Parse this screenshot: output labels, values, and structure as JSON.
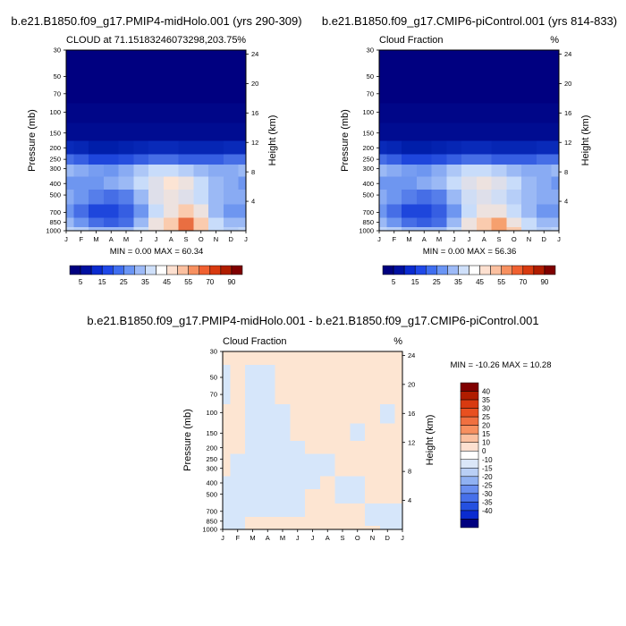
{
  "months": [
    "J",
    "F",
    "M",
    "A",
    "M",
    "J",
    "J",
    "A",
    "S",
    "O",
    "N",
    "D",
    "J"
  ],
  "pressure_ticks": [
    30,
    50,
    70,
    100,
    150,
    200,
    250,
    300,
    400,
    500,
    700,
    850,
    1000
  ],
  "height_ticks": [
    4,
    8,
    12,
    16,
    20,
    24
  ],
  "panels": [
    {
      "title": "b.e21.B1850.f09_g17.PMIP4-midHolo.001 (yrs 290-309)",
      "left_label": "CLOUD at 71.15183246073298,203.75",
      "right_label": "%",
      "ylabel": "Pressure (mb)",
      "y2label": "Height (km)",
      "minmax": "MIN =   0.00 MAX =  60.34"
    },
    {
      "title": "b.e21.B1850.f09_g17.CMIP6-piControl.001 (yrs 814-833)",
      "left_label": "Cloud Fraction",
      "right_label": "%",
      "ylabel": "Pressure (mb)",
      "y2label": "Height (km)",
      "minmax": "MIN =   0.00 MAX =  56.36"
    },
    {
      "title": "b.e21.B1850.f09_g17.PMIP4-midHolo.001 - b.e21.B1850.f09_g17.CMIP6-piControl.001",
      "left_label": "Cloud Fraction",
      "right_label": "%",
      "ylabel": "Pressure (mb)",
      "y2label": "Height (km)",
      "minmax": "MIN = -10.26 MAX =  10.28"
    }
  ],
  "colorbar_top": {
    "labels": [
      "5",
      "15",
      "25",
      "35",
      "45",
      "55",
      "70",
      "90"
    ],
    "colors": [
      "#00007f",
      "#0010a0",
      "#0a2bd0",
      "#1f48e8",
      "#3f6ef0",
      "#6a95f5",
      "#9dbaf7",
      "#cfe0fa",
      "#ffffff",
      "#fde0d0",
      "#fbc0a0",
      "#f79060",
      "#f06030",
      "#d83a10",
      "#b01d00",
      "#7f0000"
    ]
  },
  "colorbar_diff": {
    "labels": [
      "40",
      "35",
      "30",
      "25",
      "20",
      "15",
      "10",
      "0",
      "-10",
      "-15",
      "-20",
      "-25",
      "-30",
      "-35",
      "-40"
    ],
    "colors": [
      "#7f0000",
      "#b01d00",
      "#d83a10",
      "#e85020",
      "#f07040",
      "#f79060",
      "#fbc0a0",
      "#fde0d0",
      "#ffffff",
      "#dbe7f8",
      "#b9cff5",
      "#90b1f2",
      "#6a8ff0",
      "#4770ea",
      "#2450e0",
      "#0a2bd0",
      "#00007f"
    ]
  },
  "chart_data": [
    {
      "type": "heatmap",
      "title": "b.e21.B1850.f09_g17.PMIP4-midHolo.001 (yrs 290-309)",
      "xlabel": "",
      "ylabel": "Pressure (mb)",
      "x": [
        "J",
        "F",
        "M",
        "A",
        "M",
        "J",
        "J",
        "A",
        "S",
        "O",
        "N",
        "D",
        "J"
      ],
      "y": [
        1000,
        850,
        700,
        500,
        400,
        300,
        250,
        200,
        150,
        100,
        70,
        50,
        30
      ],
      "ylim": [
        1000,
        30
      ],
      "min": 0.0,
      "max": 60.34,
      "values": [
        [
          34,
          33,
          30,
          30,
          30,
          35,
          40,
          45,
          55,
          45,
          35,
          33,
          34
        ],
        [
          30,
          25,
          20,
          18,
          20,
          30,
          40,
          45,
          55,
          45,
          35,
          30,
          30
        ],
        [
          25,
          20,
          15,
          15,
          18,
          25,
          35,
          40,
          45,
          40,
          30,
          25,
          25
        ],
        [
          28,
          25,
          22,
          20,
          22,
          30,
          38,
          40,
          38,
          35,
          30,
          28,
          28
        ],
        [
          25,
          25,
          25,
          28,
          30,
          35,
          38,
          42,
          40,
          35,
          30,
          28,
          25
        ],
        [
          30,
          28,
          26,
          25,
          28,
          32,
          35,
          35,
          33,
          30,
          28,
          28,
          30
        ],
        [
          20,
          18,
          15,
          15,
          16,
          18,
          20,
          20,
          18,
          18,
          18,
          20,
          20
        ],
        [
          8,
          7,
          5,
          5,
          6,
          7,
          8,
          8,
          7,
          7,
          7,
          8,
          8
        ],
        [
          2,
          2,
          2,
          2,
          2,
          2,
          2,
          2,
          2,
          2,
          2,
          2,
          2
        ],
        [
          1,
          1,
          1,
          1,
          1,
          1,
          1,
          1,
          1,
          1,
          1,
          1,
          1
        ],
        [
          0,
          0,
          0,
          0,
          0,
          0,
          0,
          0,
          0,
          0,
          0,
          0,
          0
        ],
        [
          0,
          0,
          0,
          0,
          0,
          0,
          0,
          0,
          0,
          0,
          0,
          0,
          0
        ],
        [
          0,
          0,
          0,
          0,
          0,
          0,
          0,
          0,
          0,
          0,
          0,
          0,
          0
        ]
      ]
    },
    {
      "type": "heatmap",
      "title": "b.e21.B1850.f09_g17.CMIP6-piControl.001 (yrs 814-833)",
      "xlabel": "",
      "ylabel": "Pressure (mb)",
      "x": [
        "J",
        "F",
        "M",
        "A",
        "M",
        "J",
        "J",
        "A",
        "S",
        "O",
        "N",
        "D",
        "J"
      ],
      "y": [
        1000,
        850,
        700,
        500,
        400,
        300,
        250,
        200,
        150,
        100,
        70,
        50,
        30
      ],
      "ylim": [
        1000,
        30
      ],
      "min": 0.0,
      "max": 56.36,
      "values": [
        [
          34,
          33,
          30,
          30,
          30,
          35,
          40,
          45,
          50,
          45,
          35,
          33,
          34
        ],
        [
          30,
          25,
          20,
          18,
          20,
          30,
          40,
          45,
          50,
          40,
          35,
          30,
          30
        ],
        [
          25,
          20,
          15,
          15,
          18,
          25,
          35,
          40,
          40,
          35,
          30,
          25,
          25
        ],
        [
          28,
          25,
          22,
          20,
          22,
          30,
          36,
          38,
          36,
          33,
          30,
          28,
          28
        ],
        [
          25,
          25,
          25,
          28,
          30,
          35,
          38,
          40,
          38,
          35,
          30,
          28,
          25
        ],
        [
          30,
          28,
          26,
          25,
          28,
          32,
          35,
          35,
          33,
          30,
          28,
          28,
          30
        ],
        [
          20,
          18,
          15,
          15,
          16,
          18,
          20,
          20,
          18,
          18,
          18,
          20,
          20
        ],
        [
          8,
          7,
          5,
          5,
          6,
          7,
          8,
          8,
          7,
          7,
          7,
          8,
          8
        ],
        [
          2,
          2,
          2,
          2,
          2,
          2,
          2,
          2,
          2,
          2,
          2,
          2,
          2
        ],
        [
          1,
          1,
          1,
          1,
          1,
          1,
          1,
          1,
          1,
          1,
          1,
          1,
          1
        ],
        [
          0,
          0,
          0,
          0,
          0,
          0,
          0,
          0,
          0,
          0,
          0,
          0,
          0
        ],
        [
          0,
          0,
          0,
          0,
          0,
          0,
          0,
          0,
          0,
          0,
          0,
          0,
          0
        ],
        [
          0,
          0,
          0,
          0,
          0,
          0,
          0,
          0,
          0,
          0,
          0,
          0,
          0
        ]
      ]
    },
    {
      "type": "heatmap",
      "title": "b.e21.B1850.f09_g17.PMIP4-midHolo.001 - b.e21.B1850.f09_g17.CMIP6-piControl.001",
      "xlabel": "",
      "ylabel": "Pressure (mb)",
      "x": [
        "J",
        "F",
        "M",
        "A",
        "M",
        "J",
        "J",
        "A",
        "S",
        "O",
        "N",
        "D",
        "J"
      ],
      "y": [
        1000,
        850,
        700,
        500,
        400,
        300,
        250,
        200,
        150,
        100,
        70,
        50,
        30
      ],
      "ylim": [
        1000,
        30
      ],
      "min": -10.26,
      "max": 10.28,
      "values": [
        [
          -1,
          -2,
          2,
          2,
          2,
          2,
          2,
          2,
          2,
          2,
          2,
          -2,
          -1
        ],
        [
          -2,
          -2,
          2,
          2,
          2,
          2,
          2,
          2,
          2,
          2,
          -2,
          -2,
          -2
        ],
        [
          -2,
          -2,
          -2,
          -2,
          -2,
          -2,
          2,
          2,
          2,
          2,
          -2,
          -2,
          -2
        ],
        [
          -2,
          -2,
          -2,
          -2,
          -2,
          -2,
          2,
          2,
          -2,
          -2,
          2,
          2,
          2
        ],
        [
          -2,
          -2,
          -2,
          -2,
          -2,
          -2,
          -2,
          2,
          -2,
          -2,
          2,
          2,
          2
        ],
        [
          2,
          -2,
          -2,
          -2,
          -2,
          -2,
          -2,
          -2,
          2,
          2,
          2,
          2,
          2
        ],
        [
          2,
          -2,
          -2,
          -2,
          -2,
          -2,
          -2,
          -2,
          2,
          2,
          2,
          2,
          2
        ],
        [
          2,
          2,
          -2,
          -2,
          -2,
          -2,
          2,
          2,
          2,
          2,
          2,
          2,
          2
        ],
        [
          2,
          2,
          -2,
          -2,
          -2,
          2,
          2,
          2,
          2,
          -2,
          2,
          2,
          2
        ],
        [
          2,
          2,
          -2,
          -2,
          -2,
          2,
          2,
          2,
          2,
          2,
          2,
          -2,
          2
        ],
        [
          -2,
          2,
          -2,
          -2,
          2,
          2,
          2,
          2,
          2,
          2,
          2,
          2,
          2
        ],
        [
          -2,
          2,
          -2,
          -2,
          2,
          2,
          2,
          2,
          2,
          2,
          2,
          2,
          2
        ],
        [
          2,
          2,
          2,
          2,
          2,
          2,
          2,
          2,
          2,
          2,
          2,
          2,
          2
        ]
      ]
    }
  ]
}
